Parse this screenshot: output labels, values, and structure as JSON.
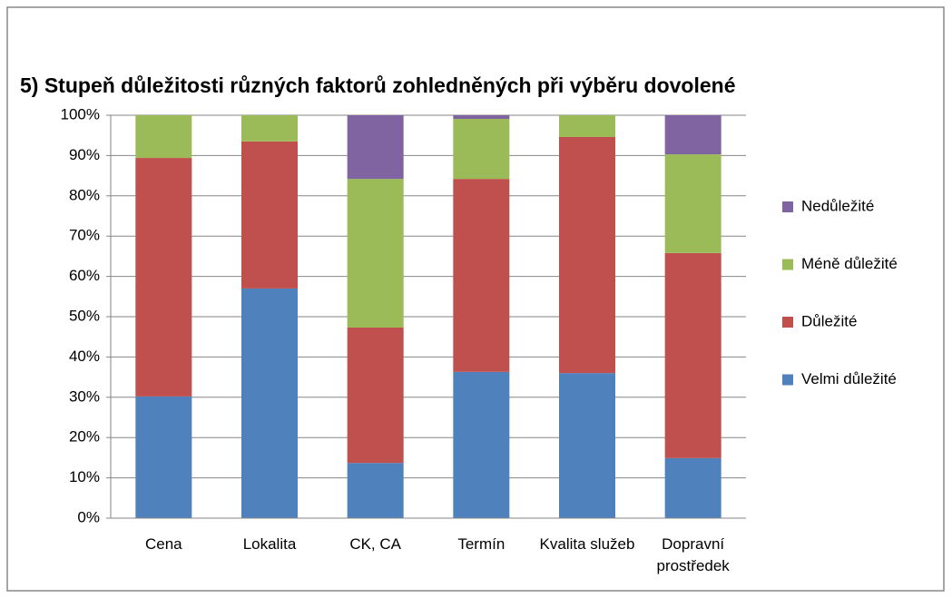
{
  "chart_data": {
    "type": "stacked_bar",
    "title": "5) Stupeň důležitosti různých faktorů zohledněných při výběru dovolené",
    "categories": [
      "Cena",
      "Lokalita",
      "CK, CA",
      "Termín",
      "Kvalita služeb",
      "Dopravní prostředek"
    ],
    "series": [
      {
        "name": "Velmi důležité",
        "color": "#4f81bd",
        "values": [
          30.2,
          57.0,
          13.7,
          36.3,
          36.0,
          14.9
        ]
      },
      {
        "name": "Důležité",
        "color": "#c0504d",
        "values": [
          59.2,
          36.5,
          33.6,
          47.9,
          58.6,
          50.9
        ]
      },
      {
        "name": "Méně důležité",
        "color": "#9bbb59",
        "values": [
          10.6,
          6.5,
          36.9,
          14.9,
          5.4,
          24.5
        ]
      },
      {
        "name": "Nedůležité",
        "color": "#8064a2",
        "values": [
          0,
          0,
          15.8,
          0.9,
          0,
          9.7
        ]
      }
    ],
    "ylim": [
      0,
      100
    ],
    "yticks": [
      {
        "value": 0,
        "label": "0%"
      },
      {
        "value": 10,
        "label": "10%"
      },
      {
        "value": 20,
        "label": "20%"
      },
      {
        "value": 30,
        "label": "30%"
      },
      {
        "value": 40,
        "label": "40%"
      },
      {
        "value": 50,
        "label": "50%"
      },
      {
        "value": 60,
        "label": "60%"
      },
      {
        "value": 70,
        "label": "70%"
      },
      {
        "value": 80,
        "label": "80%"
      },
      {
        "value": 90,
        "label": "90%"
      },
      {
        "value": 100,
        "label": "100%"
      }
    ],
    "grid": true,
    "legend": "right"
  }
}
